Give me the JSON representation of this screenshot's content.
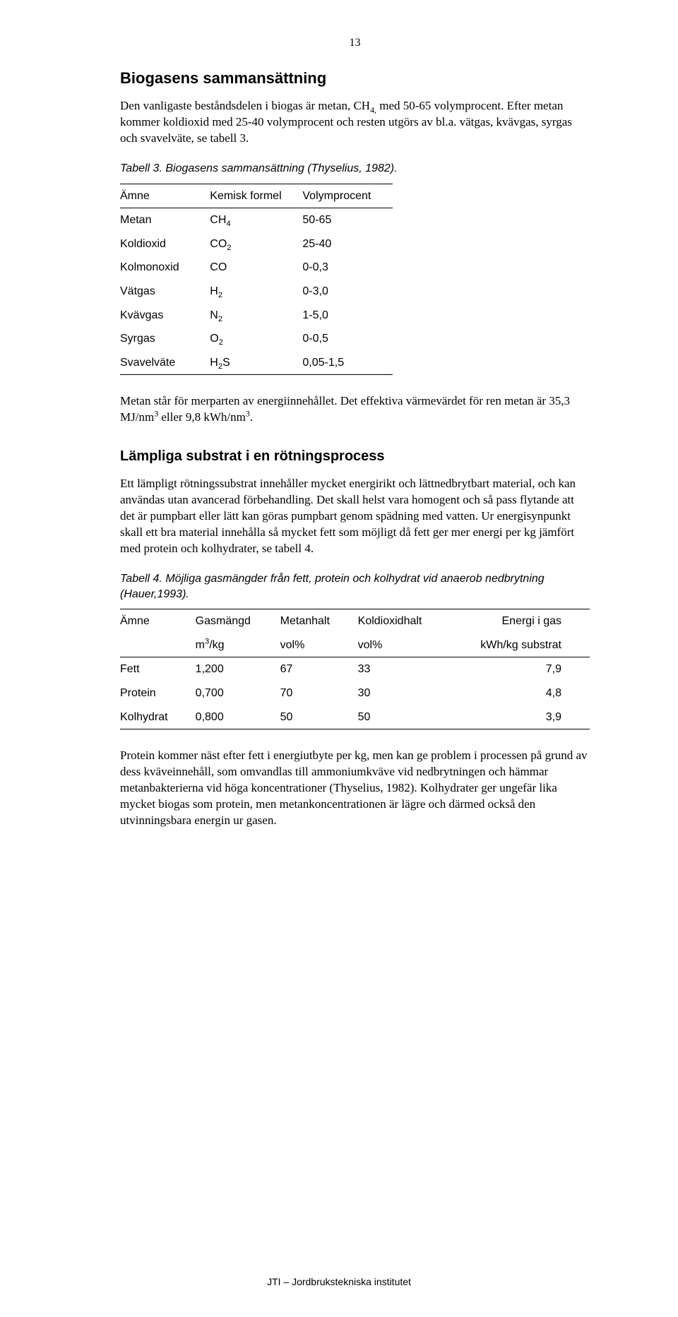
{
  "page_number": "13",
  "footer": "JTI – Jordbrukstekniska institutet",
  "section1": {
    "title": "Biogasens sammansättning",
    "para1_a": "Den vanligaste beståndsdelen i biogas är metan, CH",
    "para1_b": " med 50-65 volymprocent. Efter metan kommer koldioxid med 25-40 volymprocent och resten utgörs av bl.a. vätgas, kvävgas, syrgas och svavelväte, se tabell 3."
  },
  "table3": {
    "caption": "Tabell 3. Biogasens sammansättning (Thyselius, 1982).",
    "headers": [
      "Ämne",
      "Kemisk formel",
      "Volymprocent"
    ],
    "rows": [
      {
        "name": "Metan",
        "formula": "CH",
        "sub": "4",
        "value": "50-65"
      },
      {
        "name": "Koldioxid",
        "formula": "CO",
        "sub": "2",
        "value": "25-40"
      },
      {
        "name": "Kolmonoxid",
        "formula": "CO",
        "sub": "",
        "value": "0-0,3"
      },
      {
        "name": "Vätgas",
        "formula": "H",
        "sub": "2",
        "value": "0-3,0"
      },
      {
        "name": "Kvävgas",
        "formula": "N",
        "sub": "2",
        "value": "1-5,0"
      },
      {
        "name": "Syrgas",
        "formula": "O",
        "sub": "2",
        "value": "0-0,5"
      },
      {
        "name": "Svavelväte",
        "formula": "H",
        "sub": "2",
        "formula2": "S",
        "value": "0,05-1,5"
      }
    ]
  },
  "para2_a": "Metan står för merparten av energiinnehållet. Det effektiva värmevärdet för ren metan är 35,3 MJ/nm",
  "para2_b": " eller 9,8 kWh/nm",
  "para2_c": ".",
  "section2": {
    "title": "Lämpliga substrat i en rötningsprocess",
    "para1": "Ett lämpligt rötningssubstrat innehåller mycket energirikt och lättnedbrytbart material, och kan användas utan avancerad förbehandling. Det skall helst vara homogent och så pass flytande att det är pumpbart eller lätt kan göras pumpbart genom spädning med vatten. Ur energisynpunkt skall ett bra material innehålla så mycket fett som möjligt då fett ger mer energi per kg jämfört med protein och kolhydrater, se tabell 4."
  },
  "table4": {
    "caption": "Tabell 4. Möjliga gasmängder från fett, protein och kolhydrat vid anaerob nedbrytning (Hauer,1993).",
    "headers": {
      "h0": "Ämne",
      "h1a": "Gasmängd",
      "h1b_a": "m",
      "h1b_b": "/kg",
      "h2a": "Metanhalt",
      "h2b": "vol%",
      "h3a": "Koldioxidhalt",
      "h3b": "vol%",
      "h4a": "Energi i gas",
      "h4b": "kWh/kg substrat"
    },
    "rows": [
      {
        "c0": "Fett",
        "c1": "1,200",
        "c2": "67",
        "c3": "33",
        "c4": "7,9"
      },
      {
        "c0": "Protein",
        "c1": "0,700",
        "c2": "70",
        "c3": "30",
        "c4": "4,8"
      },
      {
        "c0": "Kolhydrat",
        "c1": "0,800",
        "c2": "50",
        "c3": "50",
        "c4": "3,9"
      }
    ]
  },
  "para_last": "Protein kommer näst efter fett i energiutbyte per kg, men kan ge problem i processen på grund av dess kväveinnehåll, som omvandlas till ammoniumkväve vid nedbrytningen och hämmar metanbakterierna vid höga koncentrationer (Thyselius, 1982). Kolhydrater ger ungefär lika mycket biogas som protein, men metankoncentrationen är lägre och därmed också den utvinningsbara energin ur gasen."
}
